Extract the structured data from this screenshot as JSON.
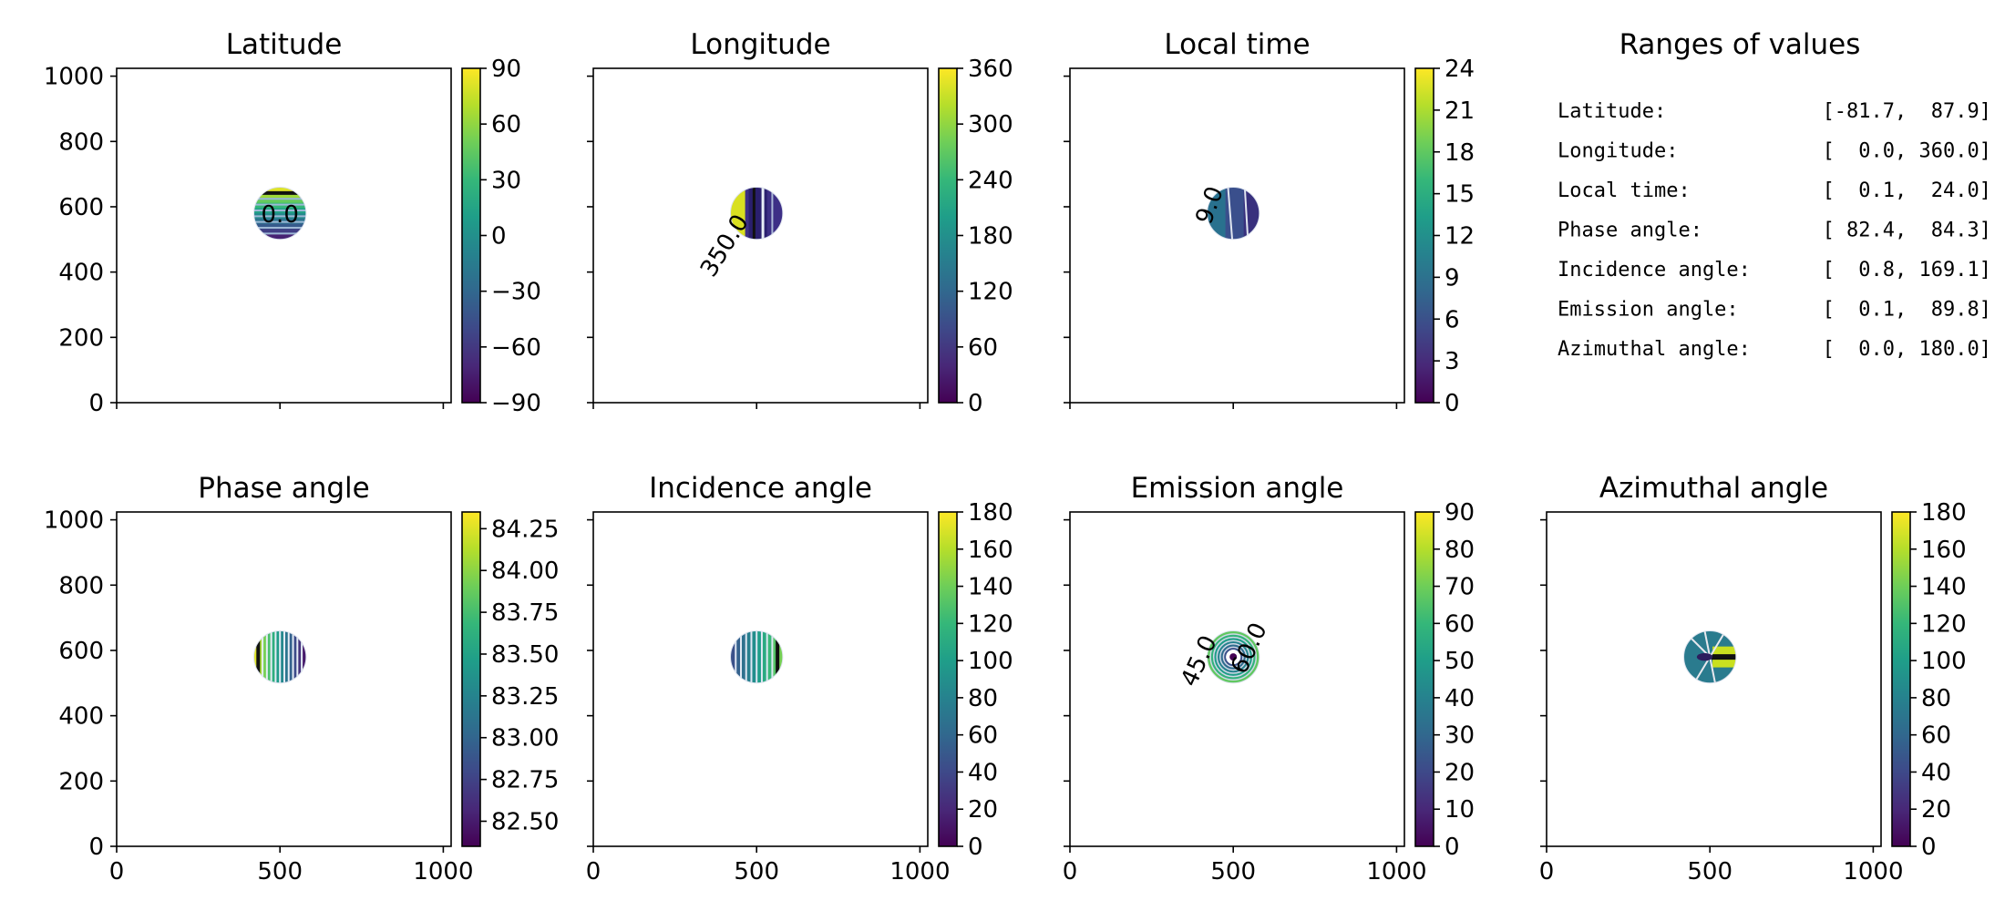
{
  "chart_data": [
    {
      "type": "heatmap",
      "title": "Latitude",
      "xlim": [
        0,
        1024
      ],
      "ylim": [
        0,
        1024
      ],
      "xticks": [
        "0",
        "500",
        "1000"
      ],
      "xticks_labeled": false,
      "yticks": [
        "0",
        "200",
        "400",
        "600",
        "800",
        "1000"
      ],
      "yticks_labeled": true,
      "colorbar": {
        "range": [
          -90,
          90
        ],
        "ticks": [
          "−90",
          "−60",
          "−30",
          "0",
          "30",
          "60",
          "90"
        ]
      },
      "disk": {
        "center": [
          500,
          580
        ],
        "radius": 80
      },
      "contour_labels": [
        "0.0"
      ]
    },
    {
      "type": "heatmap",
      "title": "Longitude",
      "xlim": [
        0,
        1024
      ],
      "ylim": [
        0,
        1024
      ],
      "xticks": [
        "0",
        "500",
        "1000"
      ],
      "xticks_labeled": false,
      "yticks": [
        "0",
        "200",
        "400",
        "600",
        "800",
        "1000"
      ],
      "yticks_labeled": false,
      "colorbar": {
        "range": [
          0,
          360
        ],
        "ticks": [
          "0",
          "60",
          "120",
          "180",
          "240",
          "300",
          "360"
        ]
      },
      "disk": {
        "center": [
          500,
          580
        ],
        "radius": 80
      },
      "contour_labels": [
        "350.0"
      ]
    },
    {
      "type": "heatmap",
      "title": "Local time",
      "xlim": [
        0,
        1024
      ],
      "ylim": [
        0,
        1024
      ],
      "xticks": [
        "0",
        "500",
        "1000"
      ],
      "xticks_labeled": false,
      "yticks": [
        "0",
        "200",
        "400",
        "600",
        "800",
        "1000"
      ],
      "yticks_labeled": false,
      "colorbar": {
        "range": [
          0,
          24
        ],
        "ticks": [
          "0",
          "3",
          "6",
          "9",
          "12",
          "15",
          "18",
          "21",
          "24"
        ]
      },
      "disk": {
        "center": [
          500,
          580
        ],
        "radius": 80
      },
      "contour_labels": [
        "9.0"
      ]
    },
    {
      "type": "table",
      "title": "Ranges of values",
      "rows": [
        {
          "label": "Latitude:",
          "value": "[-81.7,  87.9]"
        },
        {
          "label": "Longitude:",
          "value": "[  0.0, 360.0]"
        },
        {
          "label": "Local time:",
          "value": "[  0.1,  24.0]"
        },
        {
          "label": "Phase angle:",
          "value": "[ 82.4,  84.3]"
        },
        {
          "label": "Incidence angle:",
          "value": "[  0.8, 169.1]"
        },
        {
          "label": "Emission angle:",
          "value": "[  0.1,  89.8]"
        },
        {
          "label": "Azimuthal angle:",
          "value": "[  0.0, 180.0]"
        }
      ]
    },
    {
      "type": "heatmap",
      "title": "Phase angle",
      "xlim": [
        0,
        1024
      ],
      "ylim": [
        0,
        1024
      ],
      "xticks": [
        "0",
        "500",
        "1000"
      ],
      "xticks_labeled": true,
      "yticks": [
        "0",
        "200",
        "400",
        "600",
        "800",
        "1000"
      ],
      "yticks_labeled": true,
      "colorbar": {
        "range": [
          82.35,
          84.35
        ],
        "ticks": [
          "82.50",
          "82.75",
          "83.00",
          "83.25",
          "83.50",
          "83.75",
          "84.00",
          "84.25"
        ]
      },
      "disk": {
        "center": [
          500,
          580
        ],
        "radius": 80
      },
      "contour_labels": []
    },
    {
      "type": "heatmap",
      "title": "Incidence angle",
      "xlim": [
        0,
        1024
      ],
      "ylim": [
        0,
        1024
      ],
      "xticks": [
        "0",
        "500",
        "1000"
      ],
      "xticks_labeled": true,
      "yticks": [
        "0",
        "200",
        "400",
        "600",
        "800",
        "1000"
      ],
      "yticks_labeled": false,
      "colorbar": {
        "range": [
          0,
          180
        ],
        "ticks": [
          "0",
          "20",
          "40",
          "60",
          "80",
          "100",
          "120",
          "140",
          "160",
          "180"
        ]
      },
      "disk": {
        "center": [
          500,
          580
        ],
        "radius": 80
      },
      "contour_labels": []
    },
    {
      "type": "heatmap",
      "title": "Emission angle",
      "xlim": [
        0,
        1024
      ],
      "ylim": [
        0,
        1024
      ],
      "xticks": [
        "0",
        "500",
        "1000"
      ],
      "xticks_labeled": true,
      "yticks": [
        "0",
        "200",
        "400",
        "600",
        "800",
        "1000"
      ],
      "yticks_labeled": false,
      "colorbar": {
        "range": [
          0,
          90
        ],
        "ticks": [
          "0",
          "10",
          "20",
          "30",
          "40",
          "50",
          "60",
          "70",
          "80",
          "90"
        ]
      },
      "disk": {
        "center": [
          500,
          580
        ],
        "radius": 80
      },
      "contour_labels": [
        "45.0",
        "60.0"
      ]
    },
    {
      "type": "heatmap",
      "title": "Azimuthal angle",
      "xlim": [
        0,
        1024
      ],
      "ylim": [
        0,
        1024
      ],
      "xticks": [
        "0",
        "500",
        "1000"
      ],
      "xticks_labeled": true,
      "yticks": [
        "0",
        "200",
        "400",
        "600",
        "800",
        "1000"
      ],
      "yticks_labeled": false,
      "colorbar": {
        "range": [
          0,
          180
        ],
        "ticks": [
          "0",
          "20",
          "40",
          "60",
          "80",
          "100",
          "120",
          "140",
          "160",
          "180"
        ]
      },
      "disk": {
        "center": [
          500,
          580
        ],
        "radius": 80
      },
      "contour_labels": []
    }
  ]
}
